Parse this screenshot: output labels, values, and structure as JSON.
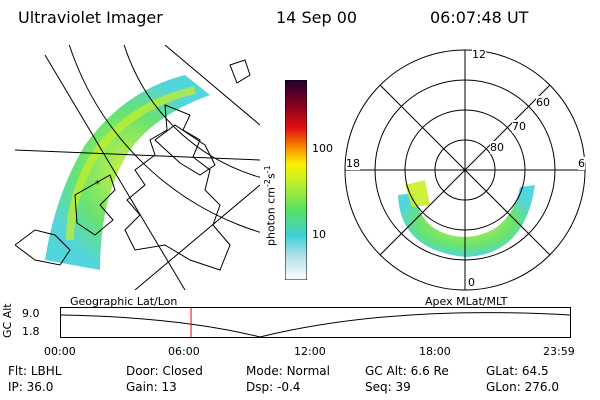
{
  "header": {
    "instrument": "Ultraviolet Imager",
    "date": "14 Sep 00",
    "time": "06:07:48 UT"
  },
  "colorbar": {
    "unit_label": "photon cm",
    "unit_sup1": "-2",
    "unit_s": "s",
    "unit_sup2": "-1",
    "ticks": [
      "100",
      "10"
    ]
  },
  "polar_plot": {
    "mlt_labels": {
      "top": "12",
      "left": "18",
      "right": "6",
      "bottom": "0"
    },
    "lat_labels": [
      "60",
      "70",
      "80"
    ]
  },
  "timeline": {
    "left_label": "Geographic Lat/Lon",
    "right_label": "Apex  MLat/MLT",
    "y_axis_label": "GC Alt",
    "y_ticks": [
      "9.0",
      "1.8"
    ],
    "x_ticks": [
      "00:00",
      "06:00",
      "12:00",
      "18:00",
      "23:59"
    ],
    "current_time_fraction": 0.2555
  },
  "info": {
    "row1": [
      {
        "key": "Flt:",
        "value": "LBHL"
      },
      {
        "key": "Door:",
        "value": "Closed"
      },
      {
        "key": "Mode:",
        "value": "Normal"
      },
      {
        "key": "GC Alt:",
        "value": "6.6 Re"
      },
      {
        "key": "GLat:",
        "value": "64.5"
      }
    ],
    "row2": [
      {
        "key": "IP:",
        "value": "36.0"
      },
      {
        "key": "Gain:",
        "value": "13"
      },
      {
        "key": "Dsp:",
        "value": "-0.4"
      },
      {
        "key": "Seq:",
        "value": "39"
      },
      {
        "key": "GLon:",
        "value": "276.0"
      }
    ]
  },
  "colors": {
    "marker": "#ff0000",
    "colorbar_stops": [
      "#ffffff",
      "#b0e0e8",
      "#40d0d8",
      "#58e060",
      "#c8f028",
      "#f8f000",
      "#f89000",
      "#e01010",
      "#800020",
      "#200030"
    ]
  }
}
